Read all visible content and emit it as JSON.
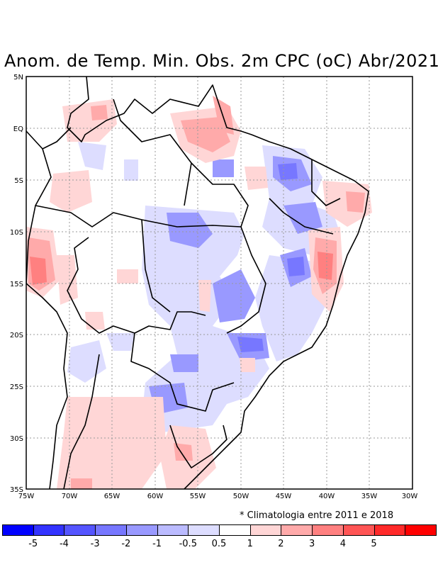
{
  "title": "Anom. de Temp. Min. Obs. 2m CPC (oC) Abr/2021",
  "lat_labels": [
    "5N",
    "EQ",
    "5S",
    "10S",
    "15S",
    "20S",
    "25S",
    "30S",
    "35S"
  ],
  "lon_labels": [
    "75W",
    "70W",
    "65W",
    "60W",
    "55W",
    "50W",
    "45W",
    "40W",
    "35W",
    "30W"
  ],
  "note": "* Climatologia entre 2011 e 2018",
  "colorbar": {
    "colors": [
      "#0000ff",
      "#3333ff",
      "#5555ff",
      "#7777ff",
      "#9999ff",
      "#bbbbff",
      "#ddddff",
      "#ffffff",
      "#ffd6d6",
      "#ffaaaa",
      "#ff8080",
      "#ff5555",
      "#ff2a2a",
      "#ff0000"
    ],
    "labels": [
      "-5",
      "-4",
      "-3",
      "-2",
      "-1",
      "-0.5",
      "0.5",
      "1",
      "2",
      "3",
      "4",
      "5"
    ]
  }
}
